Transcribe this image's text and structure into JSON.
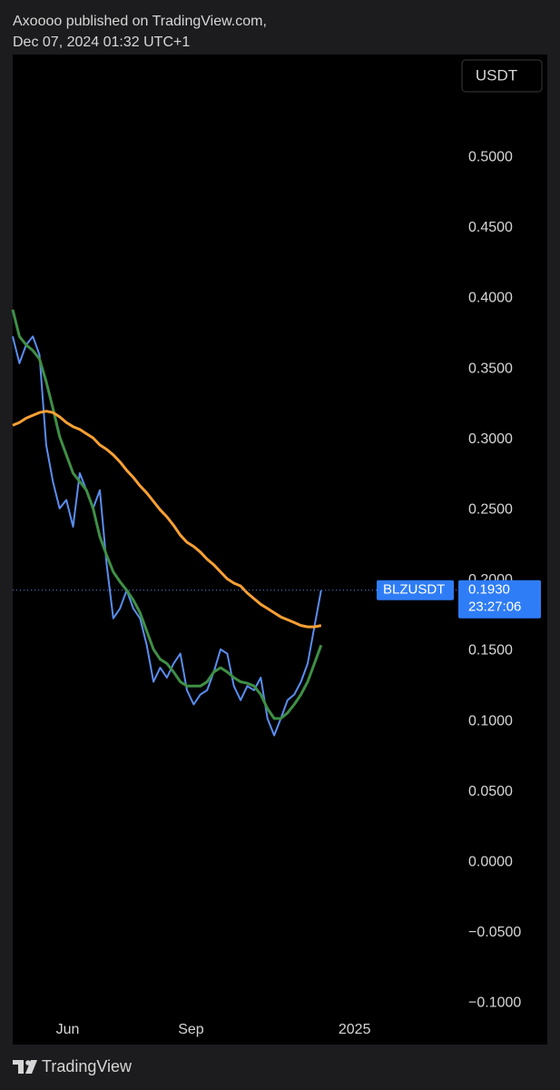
{
  "header": {
    "line1": "Axoooo published on TradingView.com,",
    "line2": "Dec 07, 2024 01:32 UTC+1"
  },
  "footer": {
    "brand": "TradingView"
  },
  "chart_data": {
    "type": "line",
    "currency": "USDT",
    "countdown": "23:27:06",
    "last_value_label": {
      "value": 0.193,
      "label": "0.1930"
    },
    "x": [
      0,
      5,
      10,
      15,
      20,
      25,
      30,
      35,
      40,
      45,
      50,
      55,
      60,
      65,
      70,
      75,
      80,
      85,
      90,
      95,
      100,
      105,
      110,
      115,
      120,
      125,
      130,
      135,
      140,
      145,
      150,
      155,
      160,
      165,
      170,
      175,
      180,
      185,
      190,
      195,
      200,
      205,
      210,
      215,
      220,
      225,
      230
    ],
    "series": [
      {
        "name": "BLZUSDT",
        "color": "#5b8def",
        "values": [
          0.373,
          0.354,
          0.367,
          0.373,
          0.36,
          0.296,
          0.27,
          0.251,
          0.257,
          0.238,
          0.276,
          0.264,
          0.251,
          0.264,
          0.212,
          0.173,
          0.18,
          0.193,
          0.18,
          0.173,
          0.154,
          0.128,
          0.138,
          0.131,
          0.141,
          0.148,
          0.122,
          0.112,
          0.119,
          0.122,
          0.135,
          0.151,
          0.148,
          0.125,
          0.115,
          0.125,
          0.122,
          0.131,
          0.102,
          0.09,
          0.102,
          0.115,
          0.119,
          0.128,
          0.141,
          0.167,
          0.193
        ]
      },
      {
        "color": "#3f8f46",
        "values": [
          0.392,
          0.373,
          0.367,
          0.363,
          0.357,
          0.341,
          0.322,
          0.302,
          0.289,
          0.276,
          0.27,
          0.264,
          0.251,
          0.231,
          0.218,
          0.206,
          0.199,
          0.193,
          0.186,
          0.177,
          0.164,
          0.151,
          0.144,
          0.141,
          0.135,
          0.128,
          0.125,
          0.125,
          0.125,
          0.128,
          0.135,
          0.138,
          0.135,
          0.131,
          0.128,
          0.127,
          0.125,
          0.119,
          0.109,
          0.102,
          0.102,
          0.106,
          0.112,
          0.119,
          0.128,
          0.141,
          0.154
        ]
      },
      {
        "color": "#f7a034",
        "values": [
          0.31,
          0.312,
          0.315,
          0.317,
          0.319,
          0.32,
          0.319,
          0.316,
          0.312,
          0.309,
          0.307,
          0.304,
          0.301,
          0.296,
          0.293,
          0.289,
          0.284,
          0.278,
          0.273,
          0.267,
          0.262,
          0.256,
          0.25,
          0.245,
          0.239,
          0.232,
          0.227,
          0.224,
          0.22,
          0.215,
          0.211,
          0.206,
          0.201,
          0.198,
          0.196,
          0.191,
          0.187,
          0.183,
          0.18,
          0.177,
          0.174,
          0.172,
          0.17,
          0.168,
          0.167,
          0.167,
          0.168
        ]
      }
    ],
    "xlim": [
      0,
      329
    ],
    "xticks": [
      {
        "value": 41,
        "label": "Jun"
      },
      {
        "value": 133,
        "label": "Sep"
      },
      {
        "value": 255,
        "label": "2025"
      }
    ],
    "ylim": [
      -0.11,
      0.573
    ],
    "yticks": [
      {
        "value": -0.1,
        "label": "−0.1000"
      },
      {
        "value": -0.05,
        "label": "−0.0500"
      },
      {
        "value": 0,
        "label": "0.0000"
      },
      {
        "value": 0.05,
        "label": "0.0500"
      },
      {
        "value": 0.1,
        "label": "0.1000"
      },
      {
        "value": 0.15,
        "label": "0.1500"
      },
      {
        "value": 0.2,
        "label": "0.2000"
      },
      {
        "value": 0.25,
        "label": "0.2500"
      },
      {
        "value": 0.3,
        "label": "0.3000"
      },
      {
        "value": 0.35,
        "label": "0.3500"
      },
      {
        "value": 0.4,
        "label": "0.4000"
      },
      {
        "value": 0.45,
        "label": "0.4500"
      },
      {
        "value": 0.5,
        "label": "0.5000"
      }
    ],
    "grid": false
  }
}
